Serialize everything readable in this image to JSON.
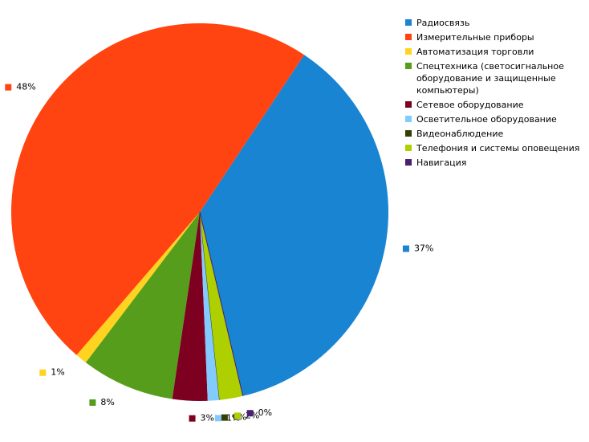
{
  "chart_data": {
    "type": "pie",
    "categories": [
      "Радиосвязь",
      "Измерительные приборы",
      "Автоматизация торговли",
      "Спецтехника (светосигнальное оборудование и защищенные компьютеры)",
      "Сетевое оборудование",
      "Осветительное оборудование",
      "Видеонаблюдение",
      "Телефония и системы оповещения",
      "Навигация"
    ],
    "values": [
      37,
      48,
      1,
      8,
      3,
      1,
      0,
      2,
      0
    ],
    "value_labels": [
      "37%",
      "48%",
      "1%",
      "8%",
      "3%",
      "1%",
      "0%",
      "2%",
      "0%"
    ],
    "colors": [
      "#1884d2",
      "#ff4411",
      "#ffd320",
      "#579d1c",
      "#7e0021",
      "#83caff",
      "#314004",
      "#aecf00",
      "#4b1f6f"
    ],
    "legend": "right"
  }
}
